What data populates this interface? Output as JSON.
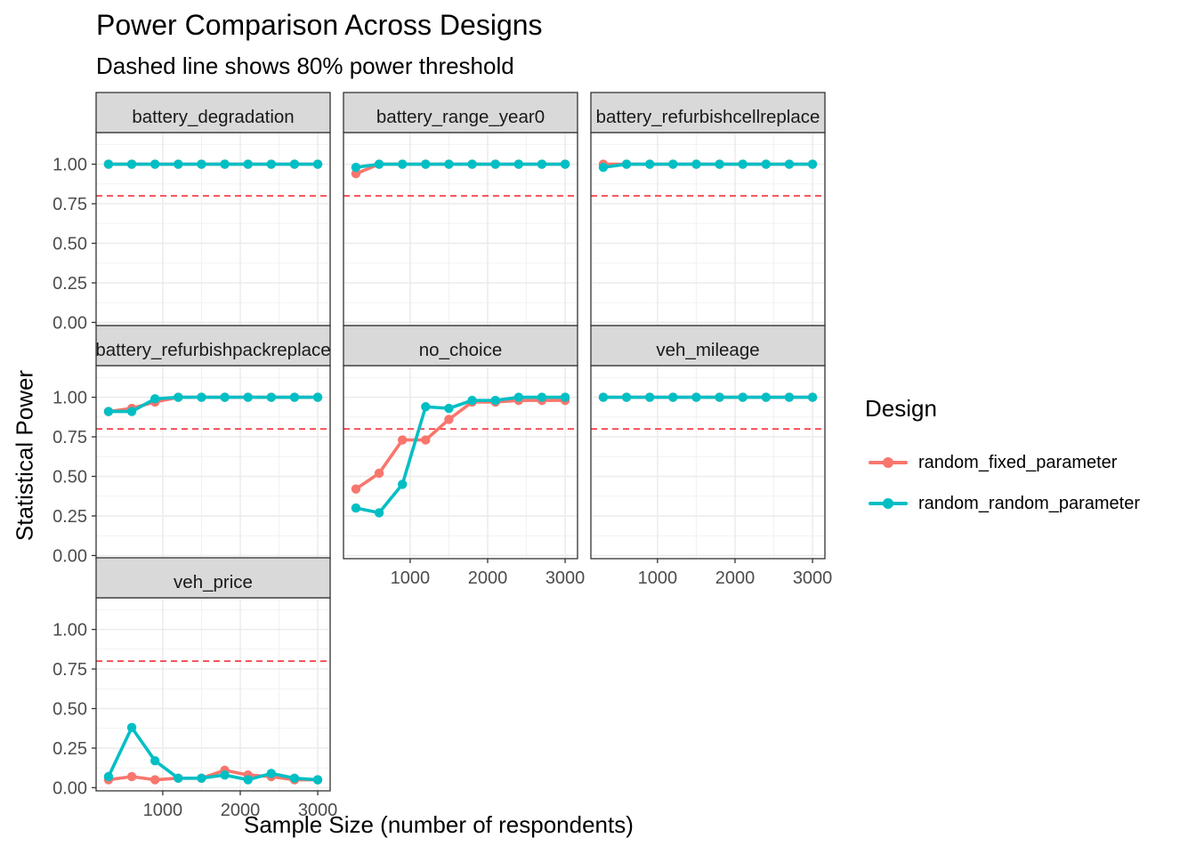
{
  "chart_data": {
    "type": "line",
    "title": "Power Comparison Across Designs",
    "subtitle": "Dashed line shows 80% power threshold",
    "xlabel": "Sample Size (number of respondents)",
    "ylabel": "Statistical Power",
    "x": [
      300,
      600,
      900,
      1200,
      1500,
      1800,
      2100,
      2400,
      2700,
      3000
    ],
    "xlim": [
      140,
      3160
    ],
    "ylim": [
      -0.02,
      1.2
    ],
    "x_ticks": [
      1000,
      2000,
      3000
    ],
    "x_tick_labels": [
      "1000",
      "2000",
      "3000"
    ],
    "y_ticks": [
      0,
      0.25,
      0.5,
      0.75,
      1
    ],
    "y_tick_labels": [
      "0.00",
      "0.25",
      "0.50",
      "0.75",
      "1.00"
    ],
    "threshold": 0.8,
    "threshold_color": "#F8333C",
    "grid": true,
    "legend": {
      "title": "Design",
      "position": "right",
      "entries": [
        "random_fixed_parameter",
        "random_random_parameter"
      ]
    },
    "series_colors": {
      "random_fixed_parameter": "#F8766D",
      "random_random_parameter": "#00BFC4"
    },
    "panels": [
      {
        "name": "battery_degradation",
        "series": [
          {
            "name": "random_fixed_parameter",
            "values": [
              1,
              1,
              1,
              1,
              1,
              1,
              1,
              1,
              1,
              1
            ]
          },
          {
            "name": "random_random_parameter",
            "values": [
              1,
              1,
              1,
              1,
              1,
              1,
              1,
              1,
              1,
              1
            ]
          }
        ]
      },
      {
        "name": "battery_range_year0",
        "series": [
          {
            "name": "random_fixed_parameter",
            "values": [
              0.94,
              1,
              1,
              1,
              1,
              1,
              1,
              1,
              1,
              1
            ]
          },
          {
            "name": "random_random_parameter",
            "values": [
              0.98,
              1,
              1,
              1,
              1,
              1,
              1,
              1,
              1,
              1
            ]
          }
        ]
      },
      {
        "name": "battery_refurbishcellreplace",
        "series": [
          {
            "name": "random_fixed_parameter",
            "values": [
              1,
              1,
              1,
              1,
              1,
              1,
              1,
              1,
              1,
              1
            ]
          },
          {
            "name": "random_random_parameter",
            "values": [
              0.98,
              1,
              1,
              1,
              1,
              1,
              1,
              1,
              1,
              1
            ]
          }
        ]
      },
      {
        "name": "battery_refurbishpackreplace",
        "series": [
          {
            "name": "random_fixed_parameter",
            "values": [
              0.91,
              0.93,
              0.97,
              1,
              1,
              1,
              1,
              1,
              1,
              1
            ]
          },
          {
            "name": "random_random_parameter",
            "values": [
              0.91,
              0.91,
              0.99,
              1,
              1,
              1,
              1,
              1,
              1,
              1
            ]
          }
        ]
      },
      {
        "name": "no_choice",
        "series": [
          {
            "name": "random_fixed_parameter",
            "values": [
              0.42,
              0.52,
              0.73,
              0.73,
              0.86,
              0.97,
              0.97,
              0.98,
              0.98,
              0.98
            ]
          },
          {
            "name": "random_random_parameter",
            "values": [
              0.3,
              0.27,
              0.45,
              0.94,
              0.93,
              0.98,
              0.98,
              1,
              1,
              1
            ]
          }
        ]
      },
      {
        "name": "veh_mileage",
        "series": [
          {
            "name": "random_fixed_parameter",
            "values": [
              1,
              1,
              1,
              1,
              1,
              1,
              1,
              1,
              1,
              1
            ]
          },
          {
            "name": "random_random_parameter",
            "values": [
              1,
              1,
              1,
              1,
              1,
              1,
              1,
              1,
              1,
              1
            ]
          }
        ]
      },
      {
        "name": "veh_price",
        "series": [
          {
            "name": "random_fixed_parameter",
            "values": [
              0.05,
              0.07,
              0.05,
              0.06,
              0.06,
              0.11,
              0.08,
              0.07,
              0.05,
              0.05
            ]
          },
          {
            "name": "random_random_parameter",
            "values": [
              0.07,
              0.38,
              0.17,
              0.06,
              0.06,
              0.08,
              0.05,
              0.09,
              0.06,
              0.05
            ]
          }
        ]
      }
    ]
  }
}
